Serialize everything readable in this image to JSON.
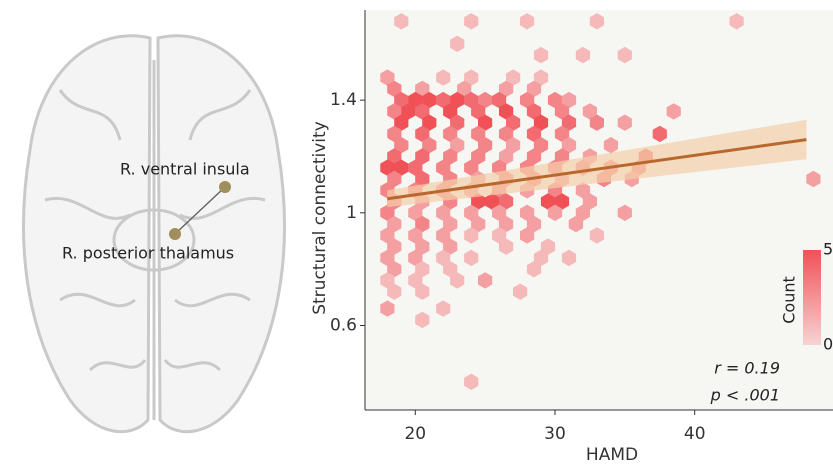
{
  "chart_data": {
    "type": "hexbin",
    "x_label": "HAMD",
    "y_label": "Structural connectivity",
    "xlim": [
      16.4,
      49.9
    ],
    "ylim": [
      0.3,
      1.72
    ],
    "xticks": [
      20,
      30,
      40
    ],
    "yticks": [
      0.6,
      1.0,
      1.4
    ],
    "low_color": "#f7d3d3",
    "high_color": "#f05157",
    "colorbar": {
      "label": "Count",
      "lim": [
        0,
        5
      ],
      "ticks": [
        0,
        5
      ]
    },
    "hex_rows": [
      {
        "y": 1.68,
        "x": [
          19,
          24,
          28,
          33,
          43
        ],
        "counts": [
          1,
          1,
          1,
          1,
          1
        ]
      },
      {
        "y": 1.6,
        "x": [
          23
        ],
        "counts": [
          1
        ]
      },
      {
        "y": 1.56,
        "x": [
          29,
          32,
          35
        ],
        "counts": [
          1,
          1,
          1
        ]
      },
      {
        "y": 1.48,
        "x": [
          18,
          22,
          24,
          27,
          29
        ],
        "counts": [
          2,
          1,
          1,
          1,
          1
        ]
      },
      {
        "y": 1.44,
        "x": [
          18.5,
          20.5,
          23.5,
          26.5,
          28.5
        ],
        "counts": [
          3,
          2,
          2,
          2,
          2
        ]
      },
      {
        "y": 1.4,
        "x": [
          19,
          20,
          21,
          22,
          23,
          24,
          25,
          26,
          28,
          30,
          31
        ],
        "counts": [
          4,
          5,
          5,
          4,
          5,
          4,
          3,
          4,
          3,
          3,
          2
        ]
      },
      {
        "y": 1.36,
        "x": [
          18.5,
          19.5,
          20.5,
          22.5,
          24.5,
          26.5,
          28.5,
          30.5,
          32.5,
          38.5
        ],
        "counts": [
          3,
          5,
          4,
          5,
          4,
          5,
          4,
          3,
          2,
          2
        ]
      },
      {
        "y": 1.32,
        "x": [
          19,
          21,
          23,
          25,
          27,
          29,
          31,
          33,
          35
        ],
        "counts": [
          5,
          5,
          4,
          5,
          4,
          5,
          4,
          3,
          2
        ]
      },
      {
        "y": 1.28,
        "x": [
          18.5,
          20.5,
          22.5,
          24.5,
          26.5,
          28.5,
          30.5,
          37.5
        ],
        "counts": [
          3,
          4,
          3,
          3,
          3,
          4,
          3,
          4
        ]
      },
      {
        "y": 1.24,
        "x": [
          19,
          21,
          23,
          25,
          27,
          29,
          31,
          34
        ],
        "counts": [
          3,
          3,
          2,
          3,
          2,
          3,
          2,
          2
        ]
      },
      {
        "y": 1.2,
        "x": [
          18.5,
          20.5,
          22.5,
          24.5,
          26.5,
          28.5,
          30.5,
          32.5,
          36.5
        ],
        "counts": [
          4,
          4,
          3,
          3,
          2,
          3,
          3,
          2,
          4
        ]
      },
      {
        "y": 1.16,
        "x": [
          18,
          19,
          20,
          22,
          24,
          26,
          28,
          30,
          32,
          34,
          36
        ],
        "counts": [
          5,
          5,
          4,
          3,
          3,
          3,
          3,
          3,
          3,
          3,
          3
        ]
      },
      {
        "y": 1.12,
        "x": [
          18.5,
          20.5,
          22.5,
          24.5,
          26.5,
          28.5,
          30.5,
          33.5,
          35.5,
          48.5
        ],
        "counts": [
          3,
          4,
          3,
          2,
          3,
          3,
          2,
          3,
          2,
          2
        ]
      },
      {
        "y": 1.08,
        "x": [
          18,
          20,
          22,
          24,
          26,
          28,
          30,
          32
        ],
        "counts": [
          3,
          3,
          3,
          2,
          3,
          2,
          3,
          2
        ]
      },
      {
        "y": 1.04,
        "x": [
          18.5,
          20.5,
          22.5,
          24.5,
          25.5,
          26.5,
          29.5,
          30.5,
          32.5
        ],
        "counts": [
          3,
          2,
          3,
          5,
          5,
          4,
          5,
          5,
          2
        ]
      },
      {
        "y": 1.0,
        "x": [
          18,
          20,
          22,
          24,
          26,
          28,
          30,
          32,
          35
        ],
        "counts": [
          3,
          2,
          2,
          2,
          2,
          2,
          2,
          2,
          2
        ]
      },
      {
        "y": 0.96,
        "x": [
          18.5,
          20.5,
          22.5,
          24.5,
          26.5,
          28.5,
          31.5
        ],
        "counts": [
          2,
          3,
          2,
          2,
          2,
          2,
          2
        ]
      },
      {
        "y": 0.92,
        "x": [
          18,
          20,
          22,
          24,
          26,
          28,
          33
        ],
        "counts": [
          2,
          2,
          2,
          1,
          1,
          2,
          1
        ]
      },
      {
        "y": 0.88,
        "x": [
          18.5,
          20.5,
          22.5,
          26.5,
          29.5
        ],
        "counts": [
          2,
          2,
          2,
          1,
          1
        ]
      },
      {
        "y": 0.84,
        "x": [
          18,
          20,
          22,
          24,
          29,
          31
        ],
        "counts": [
          2,
          2,
          1,
          1,
          1,
          1
        ]
      },
      {
        "y": 0.8,
        "x": [
          18.5,
          20.5,
          22.5,
          28.5
        ],
        "counts": [
          2,
          1,
          1,
          1
        ]
      },
      {
        "y": 0.76,
        "x": [
          18,
          20,
          23,
          25
        ],
        "counts": [
          1,
          1,
          1,
          2
        ]
      },
      {
        "y": 0.72,
        "x": [
          18.5,
          20.5,
          27.5
        ],
        "counts": [
          1,
          1,
          1
        ]
      },
      {
        "y": 0.66,
        "x": [
          18,
          22
        ],
        "counts": [
          2,
          1
        ]
      },
      {
        "y": 0.62,
        "x": [
          20.5
        ],
        "counts": [
          1
        ]
      },
      {
        "y": 0.4,
        "x": [
          24
        ],
        "counts": [
          1
        ]
      }
    ],
    "trend": {
      "color": "#b8682c",
      "band_color": "#f3cfa8",
      "x": [
        18,
        48
      ],
      "y": [
        1.05,
        1.26
      ],
      "lower": [
        1.02,
        1.19
      ],
      "upper": [
        1.08,
        1.33
      ]
    },
    "stats": [
      "r = 0.19",
      "p < .001"
    ],
    "brain_labels": [
      "R. ventral insula",
      "R. posterior thalamus"
    ]
  }
}
